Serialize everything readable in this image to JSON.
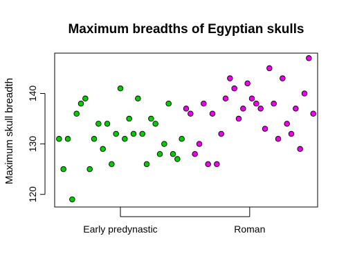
{
  "chart_data": {
    "type": "scatter",
    "title": "Maximum breadths of Egyptian skulls",
    "xlabel": "",
    "ylabel": "Maximum skull breadth",
    "ylim": [
      117.5,
      148
    ],
    "yticks": [
      120,
      130,
      140
    ],
    "categories": [
      "Early predynastic",
      "Roman"
    ],
    "grid": false,
    "legend": "none",
    "series": [
      {
        "color": "#00cd00",
        "points": [
          {
            "x": 1,
            "y": 131
          },
          {
            "x": 2,
            "y": 125
          },
          {
            "x": 3,
            "y": 131
          },
          {
            "x": 4,
            "y": 119
          },
          {
            "x": 5,
            "y": 136
          },
          {
            "x": 6,
            "y": 138
          },
          {
            "x": 7,
            "y": 139
          },
          {
            "x": 8,
            "y": 125
          },
          {
            "x": 9,
            "y": 131
          },
          {
            "x": 10,
            "y": 134
          },
          {
            "x": 11,
            "y": 129
          },
          {
            "x": 12,
            "y": 134
          },
          {
            "x": 13,
            "y": 126
          },
          {
            "x": 14,
            "y": 132
          },
          {
            "x": 15,
            "y": 141
          },
          {
            "x": 16,
            "y": 131
          },
          {
            "x": 17,
            "y": 135
          },
          {
            "x": 18,
            "y": 132
          },
          {
            "x": 19,
            "y": 139
          },
          {
            "x": 20,
            "y": 132
          },
          {
            "x": 21,
            "y": 126
          },
          {
            "x": 22,
            "y": 135
          },
          {
            "x": 23,
            "y": 134
          },
          {
            "x": 24,
            "y": 128
          },
          {
            "x": 25,
            "y": 130
          },
          {
            "x": 26,
            "y": 138
          },
          {
            "x": 27,
            "y": 128
          },
          {
            "x": 28,
            "y": 127
          },
          {
            "x": 29,
            "y": 131
          }
        ]
      },
      {
        "color": "#ee00ee",
        "points": [
          {
            "x": 30,
            "y": 137
          },
          {
            "x": 31,
            "y": 136
          },
          {
            "x": 32,
            "y": 128
          },
          {
            "x": 33,
            "y": 130
          },
          {
            "x": 34,
            "y": 138
          },
          {
            "x": 35,
            "y": 126
          },
          {
            "x": 36,
            "y": 136
          },
          {
            "x": 37,
            "y": 126
          },
          {
            "x": 38,
            "y": 132
          },
          {
            "x": 39,
            "y": 139
          },
          {
            "x": 40,
            "y": 143
          },
          {
            "x": 41,
            "y": 141
          },
          {
            "x": 42,
            "y": 135
          },
          {
            "x": 43,
            "y": 137
          },
          {
            "x": 44,
            "y": 142
          },
          {
            "x": 45,
            "y": 139
          },
          {
            "x": 46,
            "y": 138
          },
          {
            "x": 47,
            "y": 137
          },
          {
            "x": 48,
            "y": 133
          },
          {
            "x": 49,
            "y": 145
          },
          {
            "x": 50,
            "y": 138
          },
          {
            "x": 51,
            "y": 131
          },
          {
            "x": 52,
            "y": 143
          },
          {
            "x": 53,
            "y": 134
          },
          {
            "x": 54,
            "y": 132
          },
          {
            "x": 55,
            "y": 137
          },
          {
            "x": 56,
            "y": 129
          },
          {
            "x": 57,
            "y": 140
          },
          {
            "x": 58,
            "y": 147
          },
          {
            "x": 59,
            "y": 136
          }
        ]
      }
    ]
  }
}
